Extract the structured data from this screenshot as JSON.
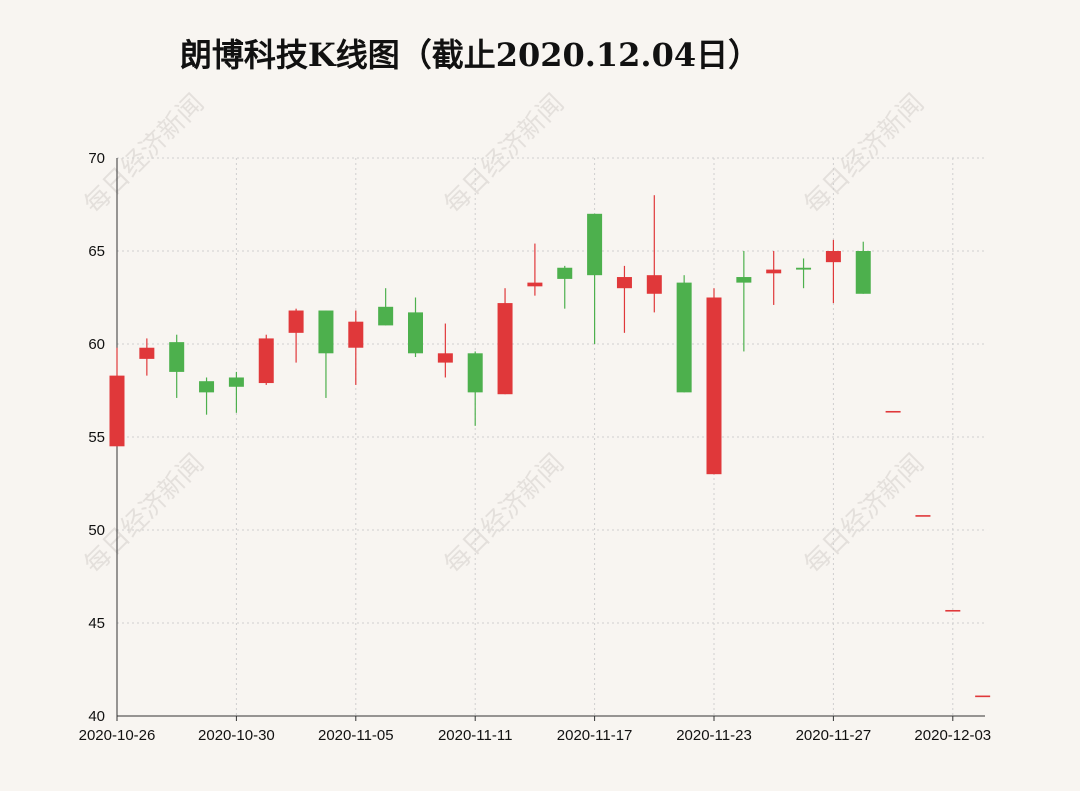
{
  "chart_data": {
    "type": "candlestick",
    "title": "朗博科技K线图（截止2020.12.04日）",
    "watermark": "每日经济新闻",
    "xlabel": "",
    "ylabel": "",
    "ylim": [
      40,
      70
    ],
    "yticks": [
      40,
      45,
      50,
      55,
      60,
      65,
      70
    ],
    "grid": true,
    "x_tick_labels": [
      "2020-10-26",
      "2020-10-30",
      "2020-11-05",
      "2020-11-11",
      "2020-11-17",
      "2020-11-23",
      "2020-11-27",
      "2020-12-03"
    ],
    "up_color": "#e0383a",
    "down_color": "#4db04d",
    "candles": [
      {
        "date": "2020-10-26",
        "open": 54.5,
        "close": 58.3,
        "high": 59.8,
        "low": 54.5
      },
      {
        "date": "2020-10-27",
        "open": 59.2,
        "close": 59.8,
        "high": 60.3,
        "low": 58.3
      },
      {
        "date": "2020-10-28",
        "open": 60.1,
        "close": 58.5,
        "high": 60.5,
        "low": 57.1
      },
      {
        "date": "2020-10-29",
        "open": 58.0,
        "close": 57.4,
        "high": 58.2,
        "low": 56.2
      },
      {
        "date": "2020-10-30",
        "open": 58.2,
        "close": 57.7,
        "high": 58.5,
        "low": 56.3
      },
      {
        "date": "2020-11-02",
        "open": 57.9,
        "close": 60.3,
        "high": 60.5,
        "low": 57.8
      },
      {
        "date": "2020-11-03",
        "open": 60.6,
        "close": 61.8,
        "high": 61.9,
        "low": 59.0
      },
      {
        "date": "2020-11-04",
        "open": 61.8,
        "close": 59.5,
        "high": 61.8,
        "low": 57.1
      },
      {
        "date": "2020-11-05",
        "open": 59.8,
        "close": 61.2,
        "high": 61.8,
        "low": 57.8
      },
      {
        "date": "2020-11-06",
        "open": 62.0,
        "close": 61.0,
        "high": 63.0,
        "low": 61.0
      },
      {
        "date": "2020-11-09",
        "open": 61.7,
        "close": 59.5,
        "high": 62.5,
        "low": 59.3
      },
      {
        "date": "2020-11-10",
        "open": 59.0,
        "close": 59.5,
        "high": 61.1,
        "low": 58.2
      },
      {
        "date": "2020-11-11",
        "open": 59.5,
        "close": 57.4,
        "high": 59.6,
        "low": 55.6
      },
      {
        "date": "2020-11-12",
        "open": 57.3,
        "close": 62.2,
        "high": 63.0,
        "low": 57.3
      },
      {
        "date": "2020-11-13",
        "open": 63.1,
        "close": 63.3,
        "high": 65.4,
        "low": 62.6
      },
      {
        "date": "2020-11-16",
        "open": 64.1,
        "close": 63.5,
        "high": 64.2,
        "low": 61.9
      },
      {
        "date": "2020-11-17",
        "open": 67.0,
        "close": 63.7,
        "high": 67.0,
        "low": 60.0
      },
      {
        "date": "2020-11-18",
        "open": 63.0,
        "close": 63.6,
        "high": 64.2,
        "low": 60.6
      },
      {
        "date": "2020-11-19",
        "open": 62.7,
        "close": 63.7,
        "high": 68.0,
        "low": 61.7
      },
      {
        "date": "2020-11-20",
        "open": 63.3,
        "close": 57.4,
        "high": 63.7,
        "low": 57.4
      },
      {
        "date": "2020-11-23",
        "open": 53.0,
        "close": 62.5,
        "high": 63.0,
        "low": 53.0
      },
      {
        "date": "2020-11-24",
        "open": 63.6,
        "close": 63.3,
        "high": 65.0,
        "low": 59.6
      },
      {
        "date": "2020-11-25",
        "open": 63.8,
        "close": 64.0,
        "high": 65.0,
        "low": 62.1
      },
      {
        "date": "2020-11-26",
        "open": 64.1,
        "close": 64.0,
        "high": 64.6,
        "low": 63.0
      },
      {
        "date": "2020-11-27",
        "open": 64.4,
        "close": 65.0,
        "high": 65.6,
        "low": 62.2
      },
      {
        "date": "2020-11-30",
        "open": 65.0,
        "close": 62.7,
        "high": 65.5,
        "low": 62.7
      },
      {
        "date": "2020-12-01",
        "open": 56.4,
        "close": 56.4,
        "high": 56.4,
        "low": 56.4
      },
      {
        "date": "2020-12-02",
        "open": 50.8,
        "close": 50.8,
        "high": 50.8,
        "low": 50.8
      },
      {
        "date": "2020-12-03",
        "open": 45.7,
        "close": 45.7,
        "high": 45.7,
        "low": 45.7
      },
      {
        "date": "2020-12-04",
        "open": 41.1,
        "close": 41.1,
        "high": 41.1,
        "low": 41.1
      }
    ]
  }
}
